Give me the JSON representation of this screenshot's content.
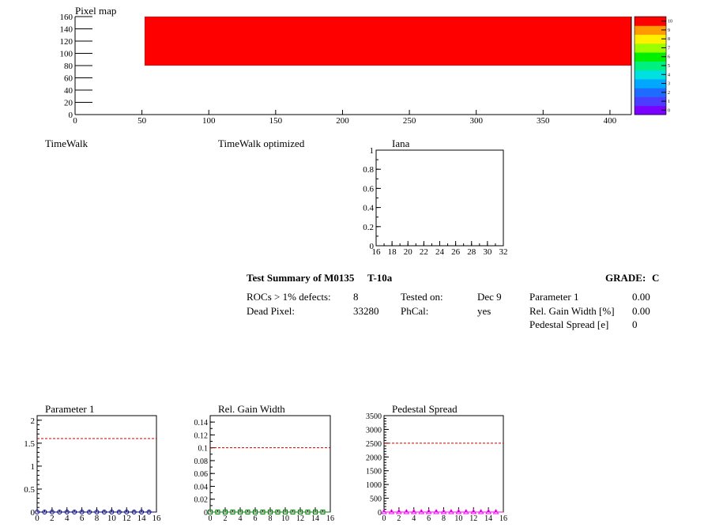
{
  "pixel_map": {
    "title": "Pixel map",
    "chart_data": {
      "type": "heatmap",
      "title": "Pixel map",
      "xlim": [
        0,
        416
      ],
      "ylim": [
        0,
        160
      ],
      "x_ticks": [
        "0",
        "50",
        "100",
        "150",
        "200",
        "250",
        "300",
        "350",
        "400"
      ],
      "y_ticks": [
        "0",
        "20",
        "40",
        "60",
        "80",
        "100",
        "120",
        "140",
        "160"
      ],
      "filled_region": {
        "x": [
          52,
          416
        ],
        "y": [
          80,
          160
        ],
        "value": 10
      },
      "zlim": [
        0,
        10
      ],
      "z_ticks": [
        "0",
        "1",
        "2",
        "3",
        "4",
        "5",
        "6",
        "7",
        "8",
        "9",
        "10"
      ],
      "fill_color": "#ff0000"
    }
  },
  "empty_titles": {
    "timewalk": "TimeWalk",
    "timewalk_opt": "TimeWalk optimized"
  },
  "iana": {
    "title": "Iana",
    "chart_data": {
      "type": "line",
      "title": "Iana",
      "xlim": [
        16,
        32
      ],
      "ylim": [
        0,
        1
      ],
      "x_ticks": [
        "16",
        "18",
        "20",
        "22",
        "24",
        "26",
        "28",
        "30",
        "32"
      ],
      "y_ticks": [
        "0",
        "0.2",
        "0.4",
        "0.6",
        "0.8",
        "1"
      ],
      "series": []
    }
  },
  "summary": {
    "title": "Test Summary of M0135",
    "test": "T-10a",
    "grade_label": "GRADE:",
    "grade": "C",
    "rows": [
      {
        "l1": "ROCs > 1% defects:",
        "v1": "8",
        "l2": "Tested on:",
        "v2": "Dec 9",
        "l3": "Parameter 1",
        "v3": "0.00"
      },
      {
        "l1": "Dead Pixel:",
        "v1": "33280",
        "l2": "PhCal:",
        "v2": "yes",
        "l3": "Rel. Gain Width [%]",
        "v3": "0.00"
      },
      {
        "l1": "",
        "v1": "",
        "l2": "",
        "v2": "",
        "l3": "Pedestal Spread [e]",
        "v3": "0"
      }
    ]
  },
  "param1": {
    "title": "Parameter 1",
    "chart_data": {
      "type": "scatter",
      "title": "Parameter 1",
      "xlim": [
        0,
        16
      ],
      "ylim": [
        0,
        2.1
      ],
      "x_ticks": [
        "0",
        "2",
        "4",
        "6",
        "8",
        "10",
        "12",
        "14",
        "16"
      ],
      "y_ticks": [
        "0",
        "0.5",
        "1",
        "1.5",
        "2"
      ],
      "threshold": 1.6,
      "points_x": [
        0,
        1,
        2,
        3,
        4,
        5,
        6,
        7,
        8,
        9,
        10,
        11,
        12,
        13,
        14,
        15
      ],
      "points_y": [
        0,
        0,
        0,
        0,
        0,
        0,
        0,
        0,
        0,
        0,
        0,
        0,
        0,
        0,
        0,
        0
      ],
      "marker": "circle",
      "color": "#00008b"
    }
  },
  "gainwidth": {
    "title": "Rel. Gain Width",
    "chart_data": {
      "type": "scatter",
      "title": "Rel. Gain Width",
      "xlim": [
        0,
        16
      ],
      "ylim": [
        0,
        0.15
      ],
      "x_ticks": [
        "0",
        "2",
        "4",
        "6",
        "8",
        "10",
        "12",
        "14",
        "16"
      ],
      "y_ticks": [
        "0",
        "0.02",
        "0.04",
        "0.06",
        "0.08",
        "0.1",
        "0.12",
        "0.14"
      ],
      "threshold": 0.1,
      "points_x": [
        0,
        1,
        2,
        3,
        4,
        5,
        6,
        7,
        8,
        9,
        10,
        11,
        12,
        13,
        14,
        15
      ],
      "points_y": [
        0,
        0,
        0,
        0,
        0,
        0,
        0,
        0,
        0,
        0,
        0,
        0,
        0,
        0,
        0,
        0
      ],
      "marker": "square",
      "color": "#008000"
    }
  },
  "pedestal": {
    "title": "Pedestal Spread",
    "chart_data": {
      "type": "scatter",
      "title": "Pedestal Spread",
      "xlim": [
        0,
        16
      ],
      "ylim": [
        0,
        3500
      ],
      "x_ticks": [
        "0",
        "2",
        "4",
        "6",
        "8",
        "10",
        "12",
        "14",
        "16"
      ],
      "y_ticks": [
        "0",
        "500",
        "1000",
        "1500",
        "2000",
        "2500",
        "3000",
        "3500"
      ],
      "threshold": 2500,
      "points_x": [
        0,
        1,
        2,
        3,
        4,
        5,
        6,
        7,
        8,
        9,
        10,
        11,
        12,
        13,
        14,
        15
      ],
      "points_y": [
        0,
        0,
        0,
        0,
        0,
        0,
        0,
        0,
        0,
        0,
        0,
        0,
        0,
        0,
        0,
        0
      ],
      "marker": "triangle",
      "color": "#ff00ff"
    }
  }
}
